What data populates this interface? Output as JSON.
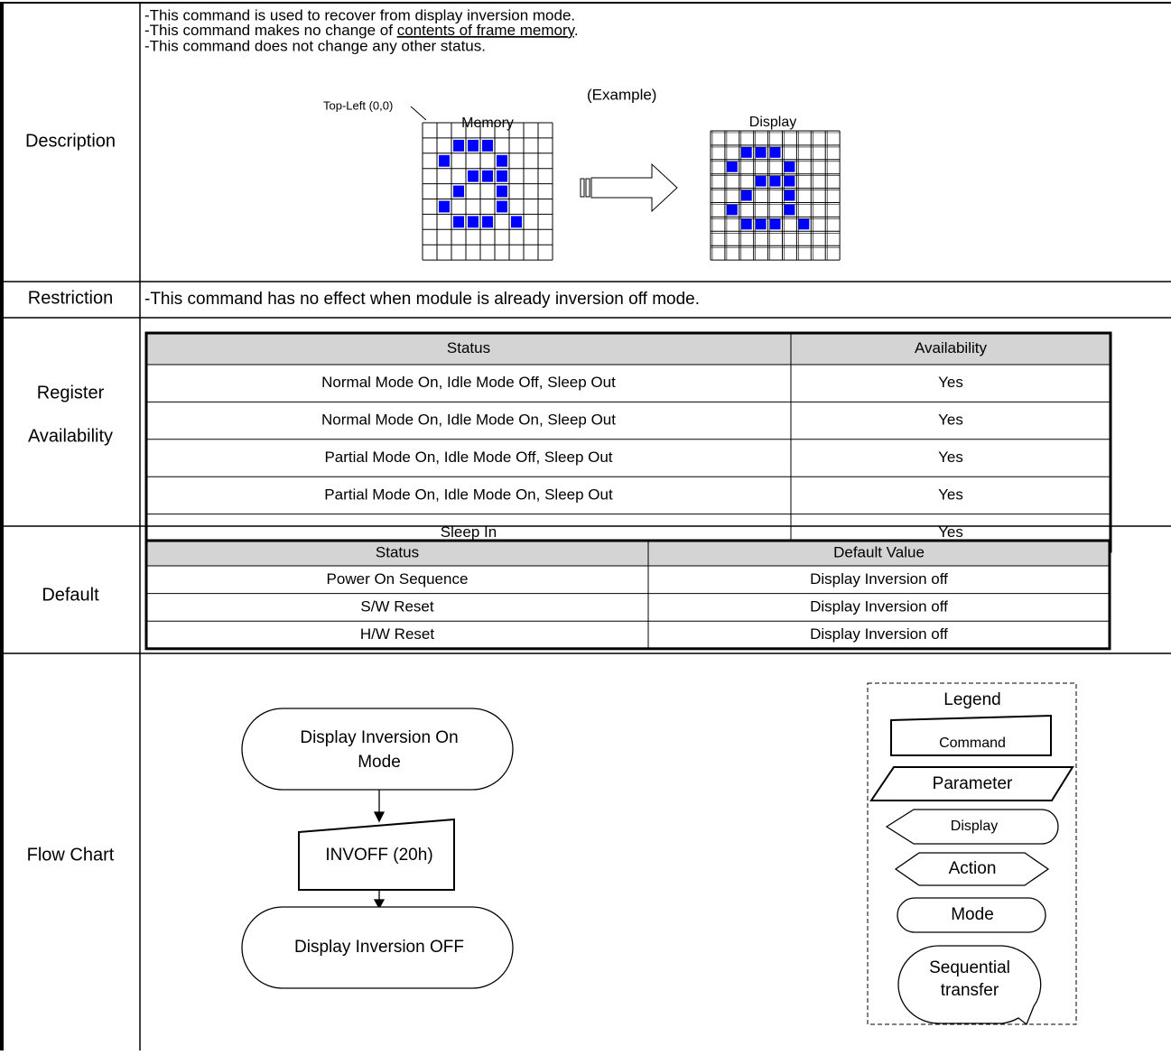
{
  "description": {
    "label": "Description",
    "line1": "-This command is used to recover from display inversion mode.",
    "line2": {
      "before": "-This command makes no change of ",
      "underlined": "contents of frame memory",
      "after": "."
    },
    "line3": "-This command does not change any other status.",
    "example": "(Example)",
    "top_left": "Top-Left (0,0)",
    "memory": "Memory",
    "display": "Display"
  },
  "restriction": {
    "label": "Restriction",
    "text": "-This command has no effect when module is already inversion off mode."
  },
  "register_availability": {
    "label": [
      "Register",
      "Availability"
    ],
    "header": [
      "Status",
      "Availability"
    ],
    "rows": [
      [
        "Normal Mode On, Idle Mode Off, Sleep Out",
        "Yes"
      ],
      [
        "Normal Mode On, Idle Mode On, Sleep Out",
        "Yes"
      ],
      [
        "Partial Mode On, Idle Mode Off, Sleep Out",
        "Yes"
      ],
      [
        "Partial Mode On, Idle Mode On, Sleep Out",
        "Yes"
      ],
      [
        "Sleep In",
        "Yes"
      ]
    ]
  },
  "default": {
    "label": "Default",
    "header": [
      "Status",
      "Default Value"
    ],
    "rows": [
      [
        "Power On Sequence",
        "Display Inversion off"
      ],
      [
        "S/W Reset",
        "Display Inversion off"
      ],
      [
        "H/W Reset",
        "Display Inversion off"
      ]
    ]
  },
  "flow_chart": {
    "label": "Flow Chart",
    "start": [
      "Display Inversion On",
      "Mode"
    ],
    "command": "INVOFF (20h)",
    "end": "Display Inversion OFF",
    "legend": {
      "title": "Legend",
      "command": "Command",
      "parameter": "Parameter",
      "display": "Display",
      "action": "Action",
      "mode": "Mode",
      "sequential": [
        "Sequential",
        "transfer"
      ]
    }
  }
}
